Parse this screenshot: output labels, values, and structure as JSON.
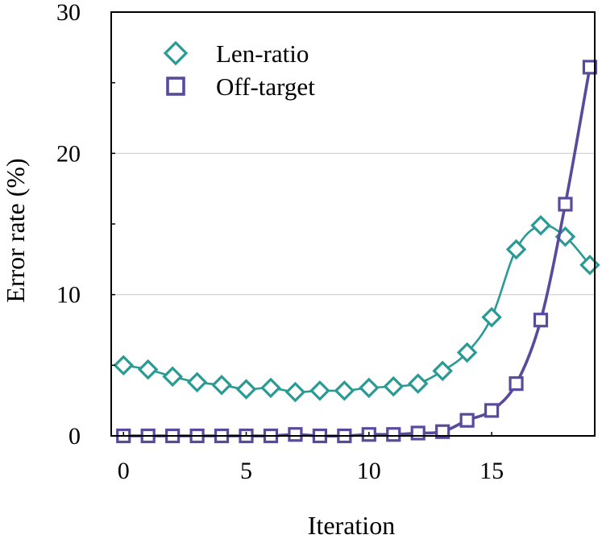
{
  "chart_data": {
    "type": "line",
    "title": "",
    "xlabel": "Iteration",
    "ylabel": "Error rate (%)",
    "xlim": [
      -0.5,
      19.2
    ],
    "ylim": [
      0,
      30
    ],
    "xticks": [
      0,
      5,
      10,
      15
    ],
    "yticks": [
      0,
      10,
      20,
      30
    ],
    "ygrid": [
      10,
      20
    ],
    "legend_position": "top-left",
    "x": [
      0,
      1,
      2,
      3,
      4,
      5,
      6,
      7,
      8,
      9,
      10,
      11,
      12,
      13,
      14,
      15,
      16,
      17,
      18,
      19
    ],
    "series": [
      {
        "name": "Len-ratio",
        "marker": "diamond",
        "color": "#2a9a94",
        "values": [
          5.0,
          4.7,
          4.2,
          3.8,
          3.6,
          3.3,
          3.4,
          3.1,
          3.2,
          3.2,
          3.4,
          3.5,
          3.7,
          4.6,
          5.9,
          8.4,
          13.2,
          14.9,
          14.1,
          12.1
        ]
      },
      {
        "name": "Off-target",
        "marker": "square",
        "color": "#5a4a9c",
        "values": [
          0.0,
          0.0,
          0.0,
          0.0,
          0.0,
          0.0,
          0.0,
          0.1,
          0.0,
          0.0,
          0.1,
          0.1,
          0.2,
          0.3,
          1.1,
          1.8,
          3.7,
          8.2,
          16.4,
          26.1
        ]
      }
    ]
  }
}
